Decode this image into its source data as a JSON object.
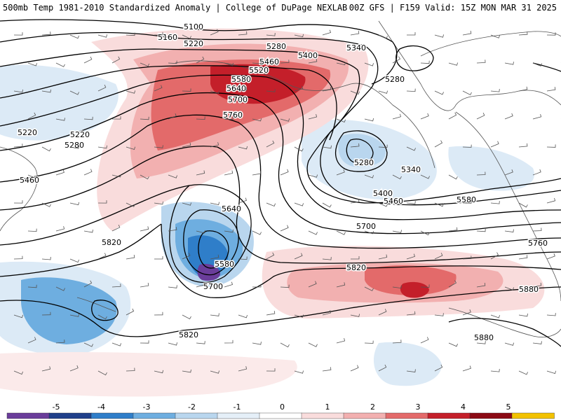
{
  "header": {
    "title": "500mb Temp 1981-2010 Standardized Anomaly | College of DuPage NEXLAB",
    "run_info": "00Z GFS | F159 Valid: 15Z MON MAR 31 2025"
  },
  "contour_labels": [
    "5100",
    "5160",
    "5220",
    "5280",
    "5340",
    "5400",
    "5460",
    "5520",
    "5580",
    "5640",
    "5700",
    "5760",
    "5220",
    "5220",
    "5280",
    "5460",
    "5820",
    "5280",
    "5340",
    "5400",
    "5460",
    "5580",
    "5640",
    "5700",
    "5760",
    "5580",
    "5700",
    "5820",
    "5820",
    "5880",
    "5880",
    "5280"
  ],
  "legend": {
    "ticks": [
      "-5",
      "-4",
      "-3",
      "-2",
      "-1",
      "0",
      "1",
      "2",
      "3",
      "4",
      "5"
    ],
    "colors": [
      "#6a3d9a",
      "#1f3f8a",
      "#2f7ec9",
      "#6eaee0",
      "#b9d6ee",
      "#e5eff8",
      "#ffffff",
      "#f9dcdc",
      "#f2b0b0",
      "#e36a6a",
      "#c41f2a",
      "#8b0a14",
      "#f2c200"
    ]
  },
  "colors": {
    "positive_anomaly": "#e36a6a",
    "negative_anomaly": "#6eaee0",
    "contour_line": "#000000",
    "coastline": "#555555"
  }
}
